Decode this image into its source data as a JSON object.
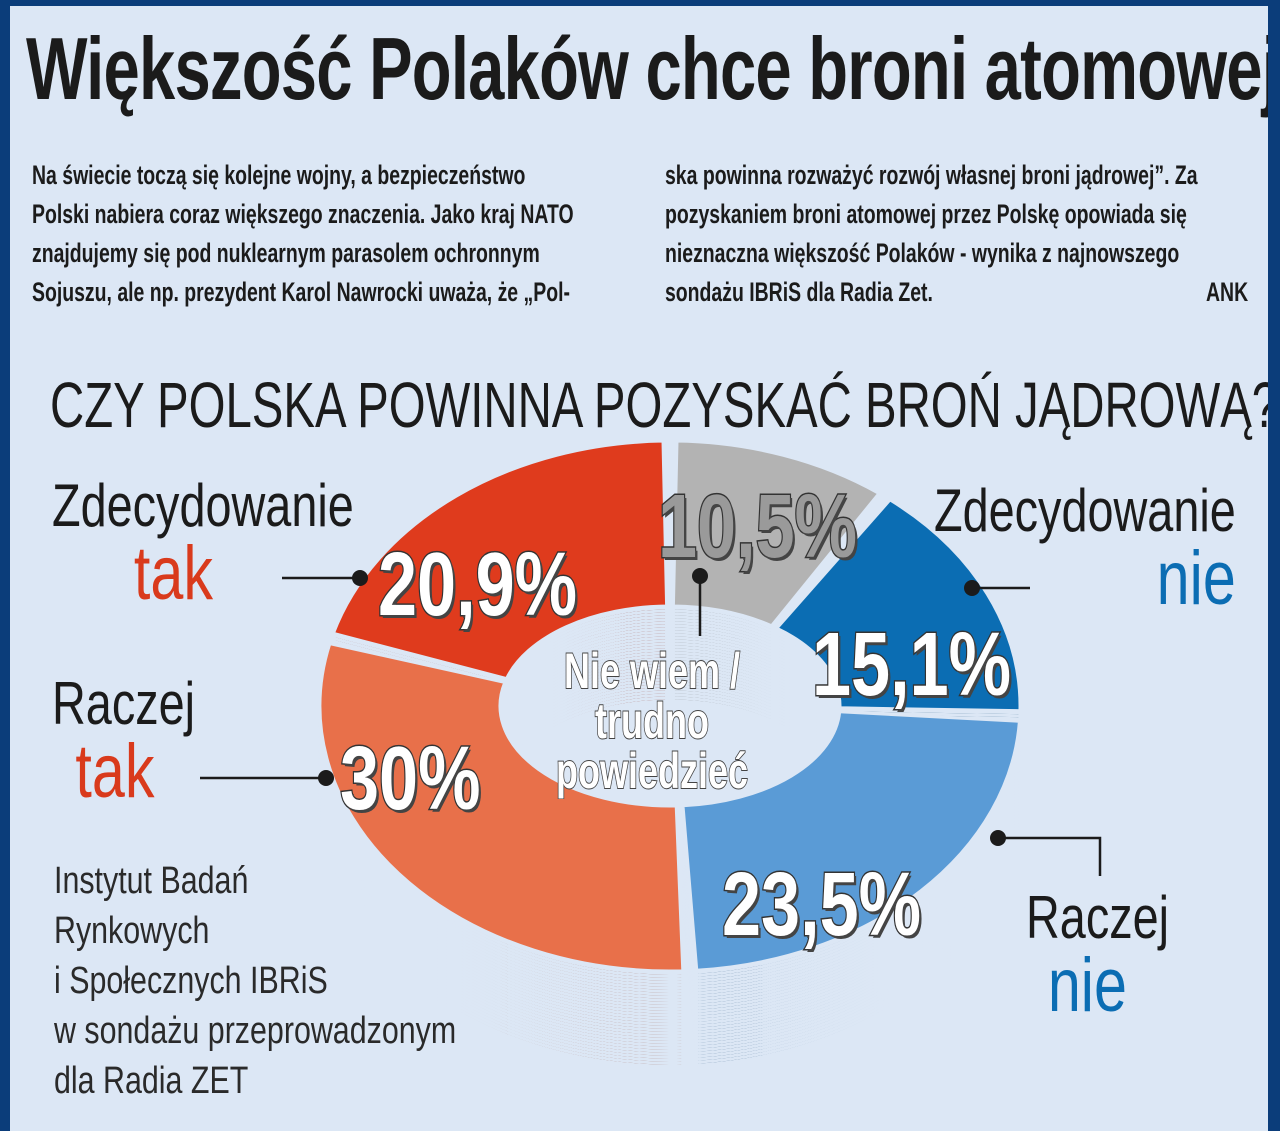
{
  "title": "Większość Polaków chce broni atomowej",
  "intro_left": [
    "Na świecie toczą się kolejne wojny, a bezpieczeństwo",
    "Polski nabiera coraz większego znaczenia. Jako kraj NATO",
    "znajdujemy się pod nuklearnym parasolem ochronnym",
    "Sojuszu, ale np. prezydent Karol Nawrocki uważa, że „Pol-"
  ],
  "intro_right": [
    "ska powinna rozważyć rozwój własnej broni jądrowej”. Za",
    "pozyskaniem broni atomowej przez Polskę opowiada się",
    "nieznaczna większość Polaków - wynika z najnowszego",
    "sondażu IBRiS dla Radia Zet."
  ],
  "author": "ANK",
  "source": [
    "Instytut Badań",
    "Rynkowych",
    "i Społecznych IBRiS",
    "w sondażu przeprowadzonym",
    "dla Radia ZET"
  ],
  "chart_data": {
    "type": "pie",
    "title": "CZY POLSKA POWINNA POZYSKAĆ BROŃ JĄDROWĄ?",
    "donut": true,
    "slices": [
      {
        "label_line1": "Nie wiem /",
        "label_line2": "trudno",
        "label_line3": "powiedzieć",
        "value": 10.5,
        "value_label": "10,5%",
        "color": "#b3b3b3"
      },
      {
        "label_line1": "Zdecydowanie",
        "label_line2": "nie",
        "value": 15.1,
        "value_label": "15,1%",
        "color": "#0b6db3"
      },
      {
        "label_line1": "Raczej",
        "label_line2": "nie",
        "value": 23.5,
        "value_label": "23,5%",
        "color": "#5a9bd6"
      },
      {
        "label_line1": "Raczej",
        "label_line2": "tak",
        "value": 30,
        "value_label": "30%",
        "color": "#e8704a"
      },
      {
        "label_line1": "Zdecydowanie",
        "label_line2": "tak",
        "value": 20.9,
        "value_label": "20,9%",
        "color": "#df3b1d"
      }
    ],
    "accent_tak": "#d93a1c",
    "accent_nie": "#0b6db3"
  }
}
